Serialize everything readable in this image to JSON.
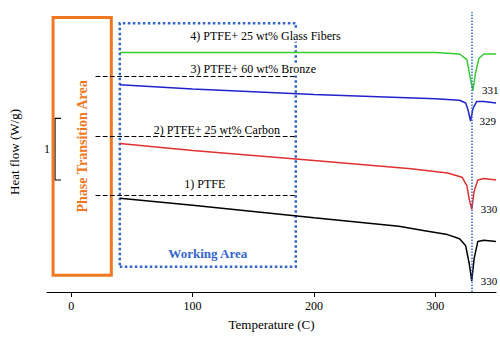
{
  "chart_data": {
    "type": "line",
    "x_label": "Temperature (C)",
    "y_label": "Heat flow (W/g)",
    "xlim": [
      -20,
      350
    ],
    "xticks": [
      0,
      100,
      200,
      300
    ],
    "ylim": [
      0,
      10
    ],
    "grid": false,
    "tick_labels": "x",
    "series": [
      {
        "name": "1) PTFE",
        "color": "#000000",
        "x": [
          40,
          100,
          200,
          270,
          290,
          310,
          320,
          325,
          328,
          330,
          332,
          335,
          340,
          350
        ],
        "values": [
          3.35,
          3.1,
          2.65,
          2.35,
          2.2,
          2.05,
          1.9,
          1.65,
          1.0,
          0.4,
          1.2,
          1.8,
          1.85,
          1.8
        ],
        "label_pos": [
          110,
          3.85
        ],
        "guide_y": 3.45,
        "peak": [
          330,
          0.4
        ]
      },
      {
        "name": "2) PTFE+ 25 wt% Carbon",
        "color": "#e03030",
        "x": [
          40,
          100,
          200,
          280,
          310,
          322,
          326,
          328,
          330,
          332,
          335,
          340,
          350
        ],
        "values": [
          5.3,
          5.05,
          4.7,
          4.4,
          4.25,
          4.1,
          3.8,
          3.3,
          2.95,
          3.6,
          4.0,
          4.05,
          4.0
        ],
        "label_pos": [
          120,
          5.8
        ],
        "guide_y": 5.55,
        "peak": [
          330,
          2.95
        ]
      },
      {
        "name": "3) PTFE+ 60 wt% Bronze",
        "color": "#2222cc",
        "x": [
          40,
          100,
          200,
          300,
          320,
          325,
          327,
          329,
          331,
          334,
          340,
          350
        ],
        "values": [
          7.4,
          7.25,
          7.05,
          6.9,
          6.85,
          6.75,
          6.5,
          6.1,
          6.55,
          6.8,
          6.8,
          6.75
        ],
        "label_pos": [
          150,
          7.95
        ],
        "guide_y": 7.7,
        "peak": [
          329,
          6.1
        ]
      },
      {
        "name": "4) PTFE+ 25 wt% Glass Fibers",
        "color": "#33cc33",
        "x": [
          40,
          100,
          200,
          300,
          320,
          326,
          329,
          331,
          333,
          336,
          340,
          350
        ],
        "values": [
          8.55,
          8.55,
          8.55,
          8.55,
          8.5,
          8.3,
          7.6,
          7.2,
          7.8,
          8.35,
          8.5,
          8.5
        ],
        "label_pos": [
          160,
          9.15
        ],
        "peak": [
          331,
          7.2
        ]
      }
    ],
    "guide_x": [
      20,
      185
    ],
    "vline": 330,
    "phase_transition_area": {
      "label": "Phase Transition Area",
      "x": [
        -15,
        33
      ],
      "y": [
        0.6,
        9.8
      ],
      "color": "#f07820"
    },
    "working_area": {
      "label": "Working Area",
      "x": [
        40,
        185
      ],
      "y": [
        0.9,
        9.6
      ],
      "color": "#3366cc"
    },
    "scale_bar": {
      "label": "1",
      "y": [
        4.0,
        6.2
      ]
    }
  }
}
